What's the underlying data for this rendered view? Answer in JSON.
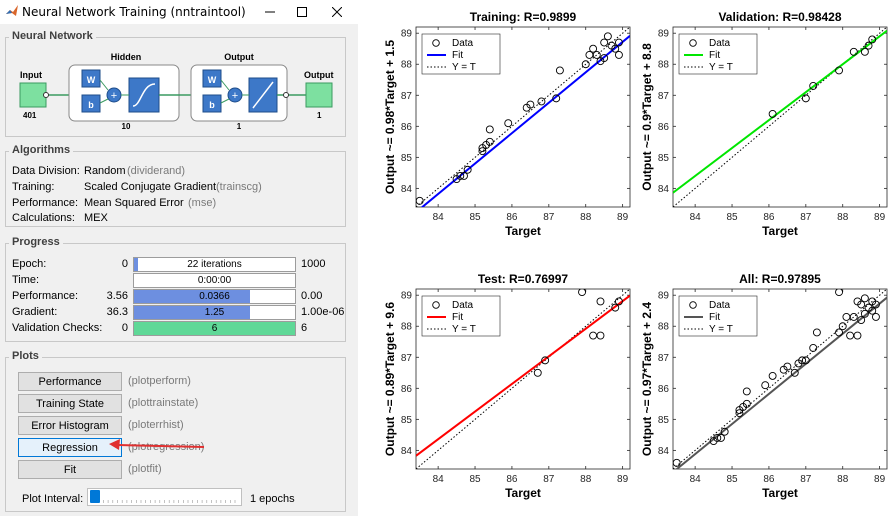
{
  "window": {
    "title": "Neural Network Training (nntraintool)"
  },
  "network": {
    "panel_title": "Neural Network",
    "input_label": "Input",
    "input_size": "401",
    "hidden_label": "Hidden",
    "hidden_size": "10",
    "output_label": "Output",
    "output_size": "1",
    "output_layer_label": "Output",
    "output_layer_size": "1",
    "w_label": "W",
    "b_label": "b"
  },
  "algorithms": {
    "panel_title": "Algorithms",
    "rows": [
      {
        "label": "Data Division:",
        "value": "Random",
        "fn": "(dividerand)"
      },
      {
        "label": "Training:",
        "value": "Scaled Conjugate Gradient",
        "fn": "(trainscg)"
      },
      {
        "label": "Performance:",
        "value": "Mean Squared Error",
        "fn": "(mse)"
      },
      {
        "label": "Calculations:",
        "value": "MEX",
        "fn": ""
      }
    ]
  },
  "progress": {
    "panel_title": "Progress",
    "rows": [
      {
        "label": "Epoch:",
        "start": "0",
        "bar_text": "22 iterations",
        "end": "1000",
        "fill": 0.022,
        "fill_color": "#6d8fe0"
      },
      {
        "label": "Time:",
        "start": "",
        "bar_text": "0:00:00",
        "end": "",
        "fill": 0,
        "fill_color": "#6d8fe0"
      },
      {
        "label": "Performance:",
        "start": "3.56",
        "bar_text": "0.0366",
        "end": "0.00",
        "fill": 0.72,
        "fill_color": "#6d8fe0"
      },
      {
        "label": "Gradient:",
        "start": "36.3",
        "bar_text": "1.25",
        "end": "1.00e-06",
        "fill": 0.72,
        "fill_color": "#6d8fe0"
      },
      {
        "label": "Validation Checks:",
        "start": "0",
        "bar_text": "6",
        "end": "6",
        "fill": 1.0,
        "fill_color": "#5fd897"
      }
    ]
  },
  "plots_panel": {
    "panel_title": "Plots",
    "buttons": [
      {
        "label": "Performance",
        "fn": "(plotperform)"
      },
      {
        "label": "Training State",
        "fn": "(plottrainstate)"
      },
      {
        "label": "Error Histogram",
        "fn": "(ploterrhist)"
      },
      {
        "label": "Regression",
        "fn": "(plotregression)"
      },
      {
        "label": "Fit",
        "fn": "(plotfit)"
      }
    ],
    "interval_label": "Plot Interval:",
    "interval_value": "1 epochs",
    "slider_fraction": 0.0
  },
  "chart_data": [
    {
      "type": "scatter",
      "title": "Training: R=0.9899",
      "xlabel": "Target",
      "ylabel": "Output ~= 0.98*Target + 1.5",
      "xlim": [
        83.4,
        89.2
      ],
      "ylim": [
        83.4,
        89.2
      ],
      "xticks": [
        84,
        85,
        86,
        87,
        88,
        89
      ],
      "yticks": [
        84,
        85,
        86,
        87,
        88,
        89
      ],
      "fit": {
        "slope": 0.98,
        "intercept": 1.5,
        "color": "#0000ff"
      },
      "legend": [
        "Data",
        "Fit",
        "Y = T"
      ],
      "legend_position": "top-left",
      "points": [
        [
          83.5,
          83.6
        ],
        [
          84.5,
          84.3
        ],
        [
          84.6,
          84.4
        ],
        [
          84.7,
          84.4
        ],
        [
          84.8,
          84.6
        ],
        [
          85.2,
          85.3
        ],
        [
          85.2,
          85.2
        ],
        [
          85.3,
          85.4
        ],
        [
          85.4,
          85.5
        ],
        [
          85.4,
          85.9
        ],
        [
          85.9,
          86.1
        ],
        [
          86.4,
          86.6
        ],
        [
          86.5,
          86.7
        ],
        [
          86.8,
          86.8
        ],
        [
          87.2,
          86.9
        ],
        [
          87.3,
          87.8
        ],
        [
          88.0,
          88.0
        ],
        [
          88.1,
          88.3
        ],
        [
          88.2,
          88.5
        ],
        [
          88.3,
          88.3
        ],
        [
          88.4,
          88.1
        ],
        [
          88.5,
          88.7
        ],
        [
          88.5,
          88.2
        ],
        [
          88.6,
          88.9
        ],
        [
          88.7,
          88.6
        ],
        [
          88.8,
          88.5
        ],
        [
          88.9,
          88.7
        ],
        [
          88.9,
          88.3
        ]
      ]
    },
    {
      "type": "scatter",
      "title": "Validation: R=0.98428",
      "xlabel": "Target",
      "ylabel": "Output ~= 0.9*Target + 8.8",
      "xlim": [
        83.4,
        89.2
      ],
      "ylim": [
        83.4,
        89.2
      ],
      "xticks": [
        84,
        85,
        86,
        87,
        88,
        89
      ],
      "yticks": [
        84,
        85,
        86,
        87,
        88,
        89
      ],
      "fit": {
        "slope": 0.9,
        "intercept": 8.8,
        "color": "#00e600"
      },
      "legend": [
        "Data",
        "Fit",
        "Y = T"
      ],
      "legend_position": "top-left",
      "points": [
        [
          86.1,
          86.4
        ],
        [
          87.0,
          86.9
        ],
        [
          87.2,
          87.3
        ],
        [
          87.9,
          87.8
        ],
        [
          88.3,
          88.4
        ],
        [
          88.6,
          88.4
        ],
        [
          88.7,
          88.6
        ],
        [
          88.8,
          88.8
        ]
      ]
    },
    {
      "type": "scatter",
      "title": "Test: R=0.76997",
      "xlabel": "Target",
      "ylabel": "Output ~= 0.89*Target + 9.6",
      "xlim": [
        83.4,
        89.2
      ],
      "ylim": [
        83.4,
        89.2
      ],
      "xticks": [
        84,
        85,
        86,
        87,
        88,
        89
      ],
      "yticks": [
        84,
        85,
        86,
        87,
        88,
        89
      ],
      "fit": {
        "slope": 0.89,
        "intercept": 9.6,
        "color": "#ff0000"
      },
      "legend": [
        "Data",
        "Fit",
        "Y = T"
      ],
      "legend_position": "top-left",
      "points": [
        [
          86.7,
          86.5
        ],
        [
          86.9,
          86.9
        ],
        [
          87.9,
          89.1
        ],
        [
          88.2,
          87.7
        ],
        [
          88.4,
          87.7
        ],
        [
          88.4,
          88.8
        ],
        [
          88.8,
          88.6
        ],
        [
          88.9,
          88.8
        ]
      ]
    },
    {
      "type": "scatter",
      "title": "All: R=0.97895",
      "xlabel": "Target",
      "ylabel": "Output ~= 0.97*Target + 2.4",
      "xlim": [
        83.4,
        89.2
      ],
      "ylim": [
        83.4,
        89.2
      ],
      "xticks": [
        84,
        85,
        86,
        87,
        88,
        89
      ],
      "yticks": [
        84,
        85,
        86,
        87,
        88,
        89
      ],
      "fit": {
        "slope": 0.97,
        "intercept": 2.4,
        "color": "#555555"
      },
      "legend": [
        "Data",
        "Fit",
        "Y = T"
      ],
      "legend_position": "top-left",
      "points": [
        [
          83.5,
          83.6
        ],
        [
          84.5,
          84.3
        ],
        [
          84.6,
          84.4
        ],
        [
          84.7,
          84.4
        ],
        [
          84.8,
          84.6
        ],
        [
          85.2,
          85.3
        ],
        [
          85.2,
          85.2
        ],
        [
          85.3,
          85.4
        ],
        [
          85.4,
          85.5
        ],
        [
          85.4,
          85.9
        ],
        [
          85.9,
          86.1
        ],
        [
          86.1,
          86.4
        ],
        [
          86.4,
          86.6
        ],
        [
          86.5,
          86.7
        ],
        [
          86.7,
          86.5
        ],
        [
          86.8,
          86.8
        ],
        [
          86.9,
          86.9
        ],
        [
          87.0,
          86.9
        ],
        [
          87.2,
          87.3
        ],
        [
          87.3,
          87.8
        ],
        [
          87.9,
          87.8
        ],
        [
          87.9,
          89.1
        ],
        [
          88.0,
          88.0
        ],
        [
          88.1,
          88.3
        ],
        [
          88.2,
          87.7
        ],
        [
          88.3,
          88.3
        ],
        [
          88.4,
          87.7
        ],
        [
          88.4,
          88.8
        ],
        [
          88.5,
          88.7
        ],
        [
          88.5,
          88.2
        ],
        [
          88.6,
          88.9
        ],
        [
          88.6,
          88.4
        ],
        [
          88.7,
          88.6
        ],
        [
          88.8,
          88.5
        ],
        [
          88.8,
          88.8
        ],
        [
          88.9,
          88.7
        ],
        [
          88.9,
          88.3
        ]
      ]
    }
  ]
}
